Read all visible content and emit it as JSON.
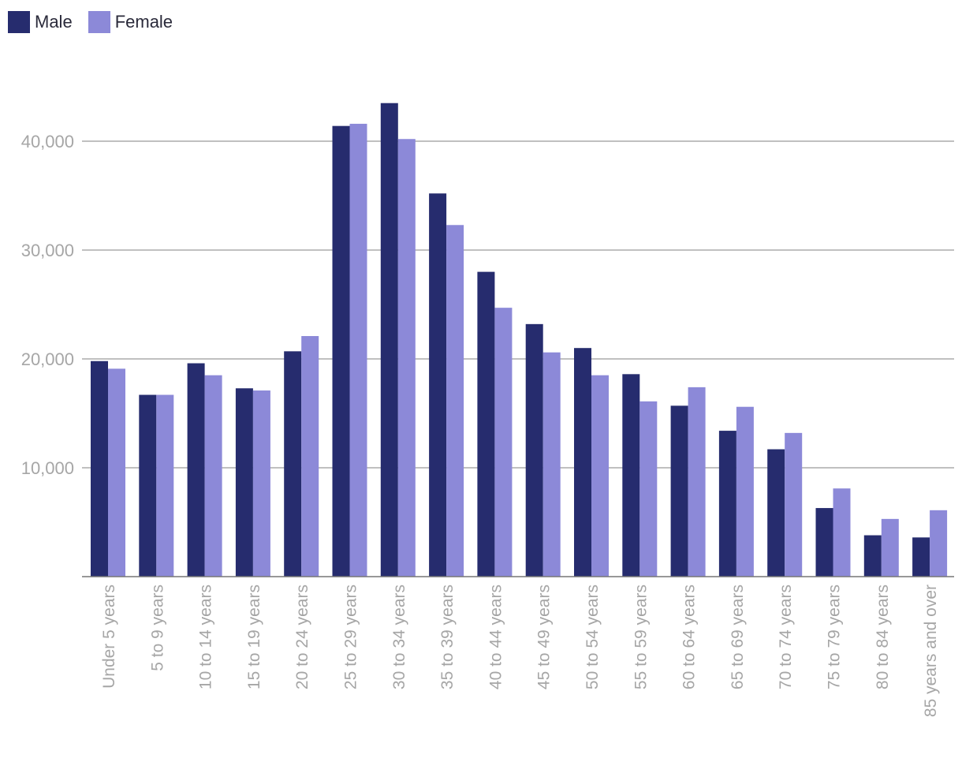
{
  "legend": {
    "items": [
      {
        "name": "Male",
        "color": "#262c6e"
      },
      {
        "name": "Female",
        "color": "#8c89d8"
      }
    ],
    "placement": "top-left"
  },
  "chart_data": {
    "type": "bar",
    "categories": [
      "Under 5 years",
      "5 to 9 years",
      "10 to 14 years",
      "15 to 19 years",
      "20 to 24 years",
      "25 to 29 years",
      "30 to 34 years",
      "35 to 39 years",
      "40 to 44 years",
      "45 to 49 years",
      "50 to 54 years",
      "55 to 59 years",
      "60 to 64 years",
      "65 to 69 years",
      "70 to 74 years",
      "75 to 79 years",
      "80 to 84 years",
      "85 years and over"
    ],
    "series": [
      {
        "name": "Male",
        "color": "#262c6e",
        "values": [
          19800,
          16700,
          19600,
          17300,
          20700,
          41400,
          43500,
          35200,
          28000,
          23200,
          21000,
          18600,
          15700,
          13400,
          11700,
          6300,
          3800,
          3600
        ]
      },
      {
        "name": "Female",
        "color": "#8c89d8",
        "values": [
          19100,
          16700,
          18500,
          17100,
          22100,
          41600,
          40200,
          32300,
          24700,
          20600,
          18500,
          16100,
          17400,
          15600,
          13200,
          8100,
          5300,
          6100
        ]
      }
    ],
    "yticks": [
      10000,
      20000,
      30000,
      40000
    ],
    "ytick_labels": [
      "10,000",
      "20,000",
      "30,000",
      "40,000"
    ],
    "ylim": [
      0,
      47000
    ],
    "grid": true,
    "xlabel": "",
    "ylabel": "",
    "title": ""
  }
}
